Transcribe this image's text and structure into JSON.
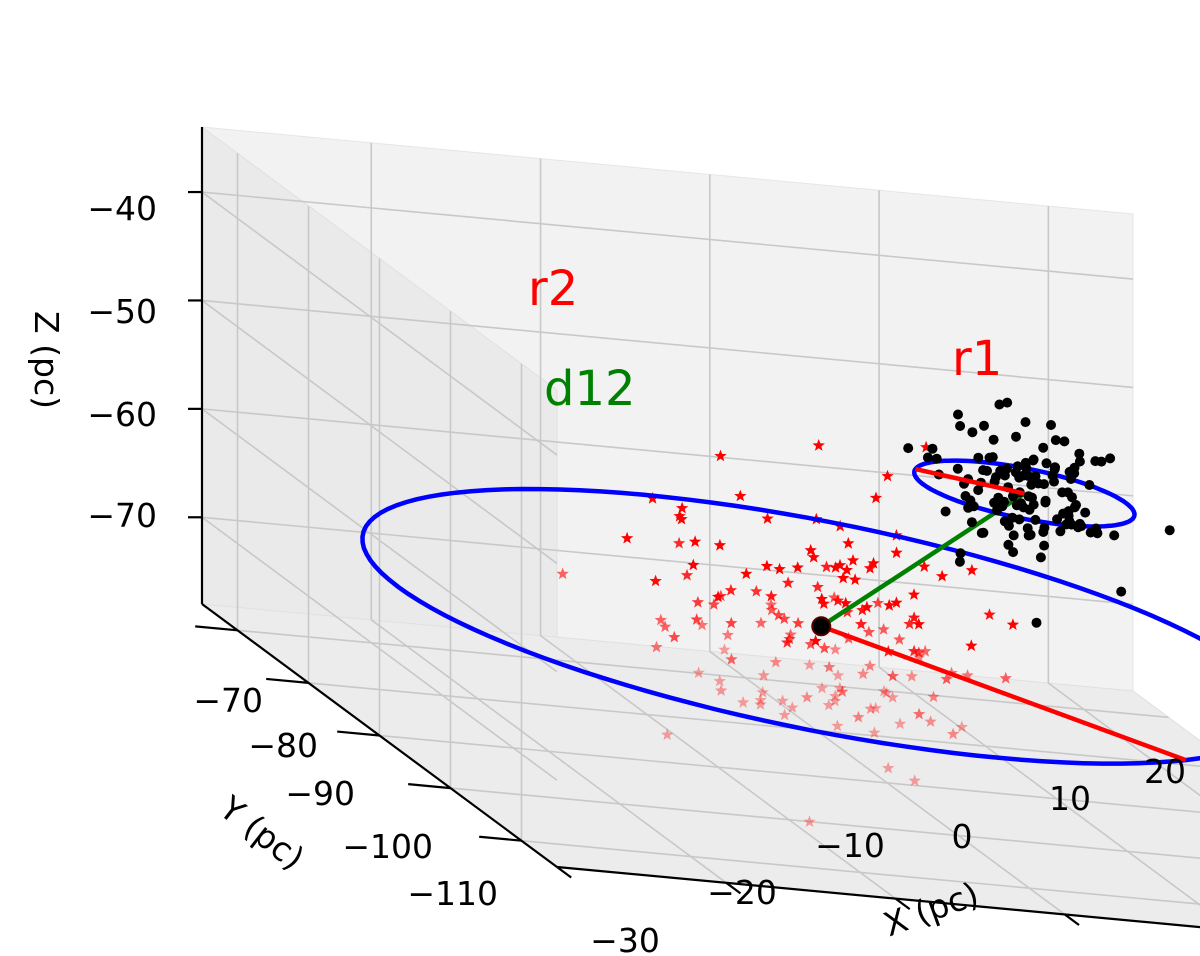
{
  "chart_data": {
    "type": "scatter3d",
    "xlabel": "X (pc)",
    "ylabel": "Y (pc)",
    "zlabel": "Z (pc)",
    "xlim": [
      -30,
      25
    ],
    "ylim": [
      -115,
      -65
    ],
    "zlim": [
      -78,
      -34
    ],
    "x_ticks": [
      -30,
      -20,
      -10,
      0,
      10,
      20
    ],
    "y_ticks": [
      -110,
      -100,
      -90,
      -80,
      -70
    ],
    "z_ticks": [
      -70,
      -60,
      -50,
      -40
    ],
    "x_tick_labels": [
      "−30",
      "−20",
      "−10",
      "0",
      "10",
      "20"
    ],
    "y_tick_labels": [
      "−110",
      "−100",
      "−90",
      "−80",
      "−70"
    ],
    "z_tick_labels": [
      "−70",
      "−60",
      "−50",
      "−40"
    ],
    "grid": true,
    "annotations": [
      {
        "id": "r1",
        "text": "r1",
        "color": "#ff0000"
      },
      {
        "id": "r2",
        "text": "r2",
        "color": "#ff0000"
      },
      {
        "id": "d12",
        "text": "d12",
        "color": "#008000"
      }
    ],
    "series": [
      {
        "id": "group1",
        "marker": "star",
        "color": "#ff0000",
        "center": {
          "x": -6,
          "y": -95,
          "z": -62
        },
        "spread": {
          "x": 5,
          "y": 5,
          "z": 5.5
        },
        "count": 150,
        "circle_radius": 25,
        "circle_color": "#0000ff"
      },
      {
        "id": "group2",
        "marker": "circle",
        "color": "#000000",
        "center": {
          "x": 6,
          "y": -95,
          "z": -48
        },
        "spread": {
          "x": 2.5,
          "y": 2.5,
          "z": 3.3
        },
        "count": 130,
        "circle_radius": 6,
        "circle_color": "#0000ff"
      }
    ],
    "lines": [
      {
        "id": "r1-line",
        "color": "#ff0000",
        "from": "group1.center",
        "to": "group1.circle_edge"
      },
      {
        "id": "r2-line",
        "color": "#ff0000",
        "from": "group2.center",
        "to": "group2.circle_edge"
      },
      {
        "id": "d12-line",
        "color": "#008000",
        "from": "group1.center",
        "to": "group2.center"
      }
    ]
  }
}
